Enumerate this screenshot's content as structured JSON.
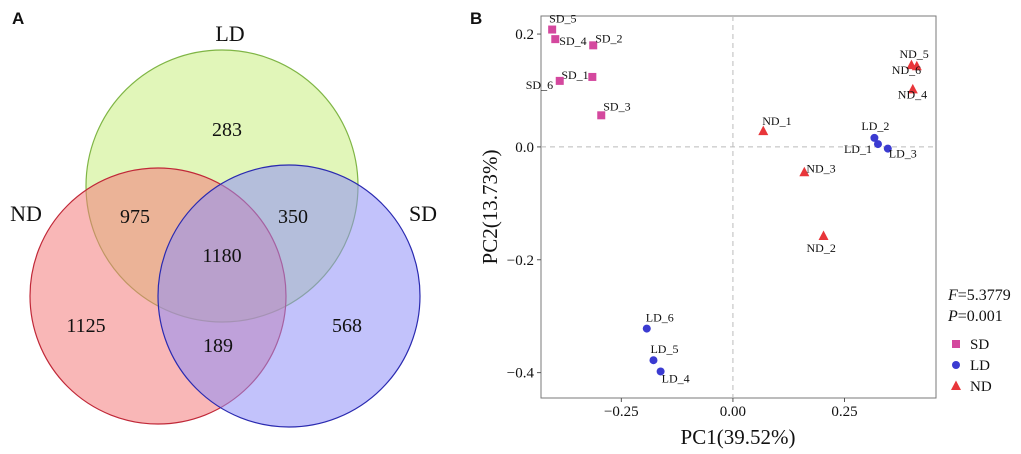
{
  "panels": {
    "A": "A",
    "B": "B"
  },
  "chart_data": [
    {
      "type": "venn",
      "panel": "A",
      "sets": [
        {
          "name": "LD",
          "color": "#c8ef7f",
          "stroke": "#7fb545"
        },
        {
          "name": "ND",
          "color": "#f47b7b",
          "stroke": "#c02838"
        },
        {
          "name": "SD",
          "color": "#8f8ff8",
          "stroke": "#2a2ab0"
        }
      ],
      "regions": {
        "LD_only": 283,
        "ND_only": 1125,
        "SD_only": 568,
        "LD_ND": 975,
        "LD_SD": 350,
        "ND_SD": 189,
        "LD_ND_SD": 1180
      }
    },
    {
      "type": "scatter",
      "panel": "B",
      "xlabel": "PC1(39.52%)",
      "ylabel": "PC2(13.73%)",
      "xlim": [
        -0.43,
        0.455
      ],
      "ylim": [
        -0.445,
        0.232
      ],
      "xticks": [
        -0.25,
        0.0,
        0.25
      ],
      "xtick_labels": [
        "−0.25",
        "0.00",
        "0.25"
      ],
      "yticks": [
        -0.4,
        -0.2,
        0.0,
        0.2
      ],
      "ytick_labels": [
        "−0.4",
        "−0.2",
        "0.0",
        "0.2"
      ],
      "zero_lines": true,
      "series": [
        {
          "name": "SD",
          "marker": "square",
          "color": "#d4489e",
          "points": [
            {
              "label": "SD_5",
              "x": -0.405,
              "y": 0.208
            },
            {
              "label": "SD_4",
              "x": -0.398,
              "y": 0.191
            },
            {
              "label": "SD_2",
              "x": -0.313,
              "y": 0.18
            },
            {
              "label": "SD_1",
              "x": -0.315,
              "y": 0.124
            },
            {
              "label": "SD_6",
              "x": -0.388,
              "y": 0.117
            },
            {
              "label": "SD_3",
              "x": -0.295,
              "y": 0.056
            }
          ]
        },
        {
          "name": "LD",
          "marker": "circle",
          "color": "#3b3bd1",
          "points": [
            {
              "label": "LD_2",
              "x": 0.317,
              "y": 0.016
            },
            {
              "label": "LD_1",
              "x": 0.325,
              "y": 0.005
            },
            {
              "label": "LD_3",
              "x": 0.347,
              "y": -0.003
            },
            {
              "label": "LD_6",
              "x": -0.193,
              "y": -0.322
            },
            {
              "label": "LD_5",
              "x": -0.178,
              "y": -0.378
            },
            {
              "label": "LD_4",
              "x": -0.162,
              "y": -0.398
            }
          ]
        },
        {
          "name": "ND",
          "marker": "triangle",
          "color": "#e8363a",
          "points": [
            {
              "label": "ND_5",
              "x": 0.4,
              "y": 0.145
            },
            {
              "label": "ND_6",
              "x": 0.412,
              "y": 0.143
            },
            {
              "label": "ND_4",
              "x": 0.403,
              "y": 0.102
            },
            {
              "label": "ND_1",
              "x": 0.068,
              "y": 0.028
            },
            {
              "label": "ND_3",
              "x": 0.16,
              "y": -0.045
            },
            {
              "label": "ND_2",
              "x": 0.203,
              "y": -0.158
            }
          ]
        }
      ],
      "stats": {
        "F_symbol": "F",
        "F_value": "=5.3779",
        "P_symbol": "P",
        "P_value": "=0.001"
      },
      "legend": [
        "SD",
        "LD",
        "ND"
      ]
    }
  ]
}
